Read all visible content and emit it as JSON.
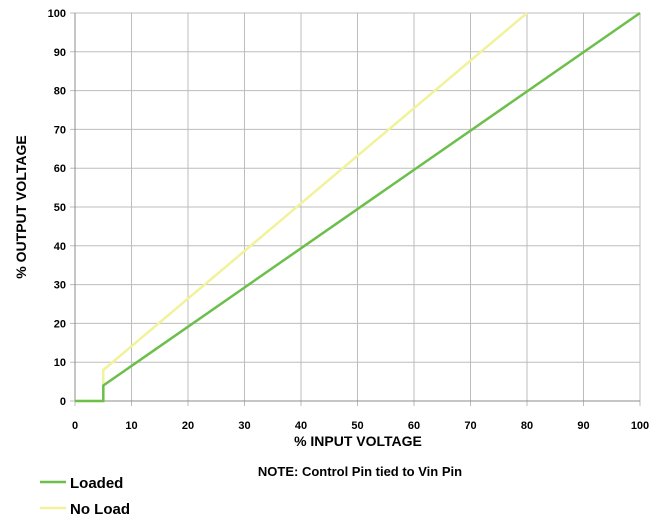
{
  "chart_data": {
    "type": "line",
    "xlabel": "% INPUT VOLTAGE",
    "ylabel": "% OUTPUT VOLTAGE",
    "note": "NOTE: Control Pin tied to Vin Pin",
    "xlim": [
      0,
      100
    ],
    "ylim": [
      0,
      100
    ],
    "x_ticks": [
      0,
      10,
      20,
      30,
      40,
      50,
      60,
      70,
      80,
      90,
      100
    ],
    "y_ticks": [
      0,
      10,
      20,
      30,
      40,
      50,
      60,
      70,
      80,
      90,
      100
    ],
    "grid": true,
    "legend_position": "bottom-left",
    "series": [
      {
        "name": "Loaded",
        "color": "#6cbf4a",
        "x": [
          0,
          5,
          5,
          100
        ],
        "y": [
          0,
          0,
          4,
          100
        ]
      },
      {
        "name": "No Load",
        "color": "#f2f29a",
        "x": [
          0,
          5,
          5,
          80
        ],
        "y": [
          0,
          0,
          8,
          100
        ]
      }
    ]
  }
}
